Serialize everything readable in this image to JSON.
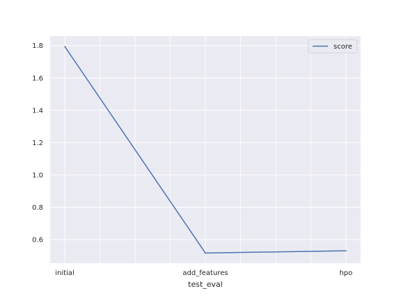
{
  "chart_data": {
    "type": "line",
    "categories": [
      "initial",
      "add_features",
      "hpo"
    ],
    "series": [
      {
        "name": "score",
        "values": [
          1.795,
          0.517,
          0.531
        ],
        "color": "#4c72b0"
      }
    ],
    "title": "",
    "xlabel": "test_eval",
    "ylabel": "",
    "ylim": [
      0.454,
      1.859
    ],
    "yticks": [
      0.6,
      0.8,
      1.0,
      1.2,
      1.4,
      1.6,
      1.8
    ],
    "ytick_labels": [
      "0.6",
      "0.8",
      "1.0",
      "1.2",
      "1.4",
      "1.6",
      "1.8"
    ],
    "grid": true,
    "legend_position": "upper-right",
    "background_color": "#eaeaf2",
    "grid_color": "#ffffff"
  }
}
